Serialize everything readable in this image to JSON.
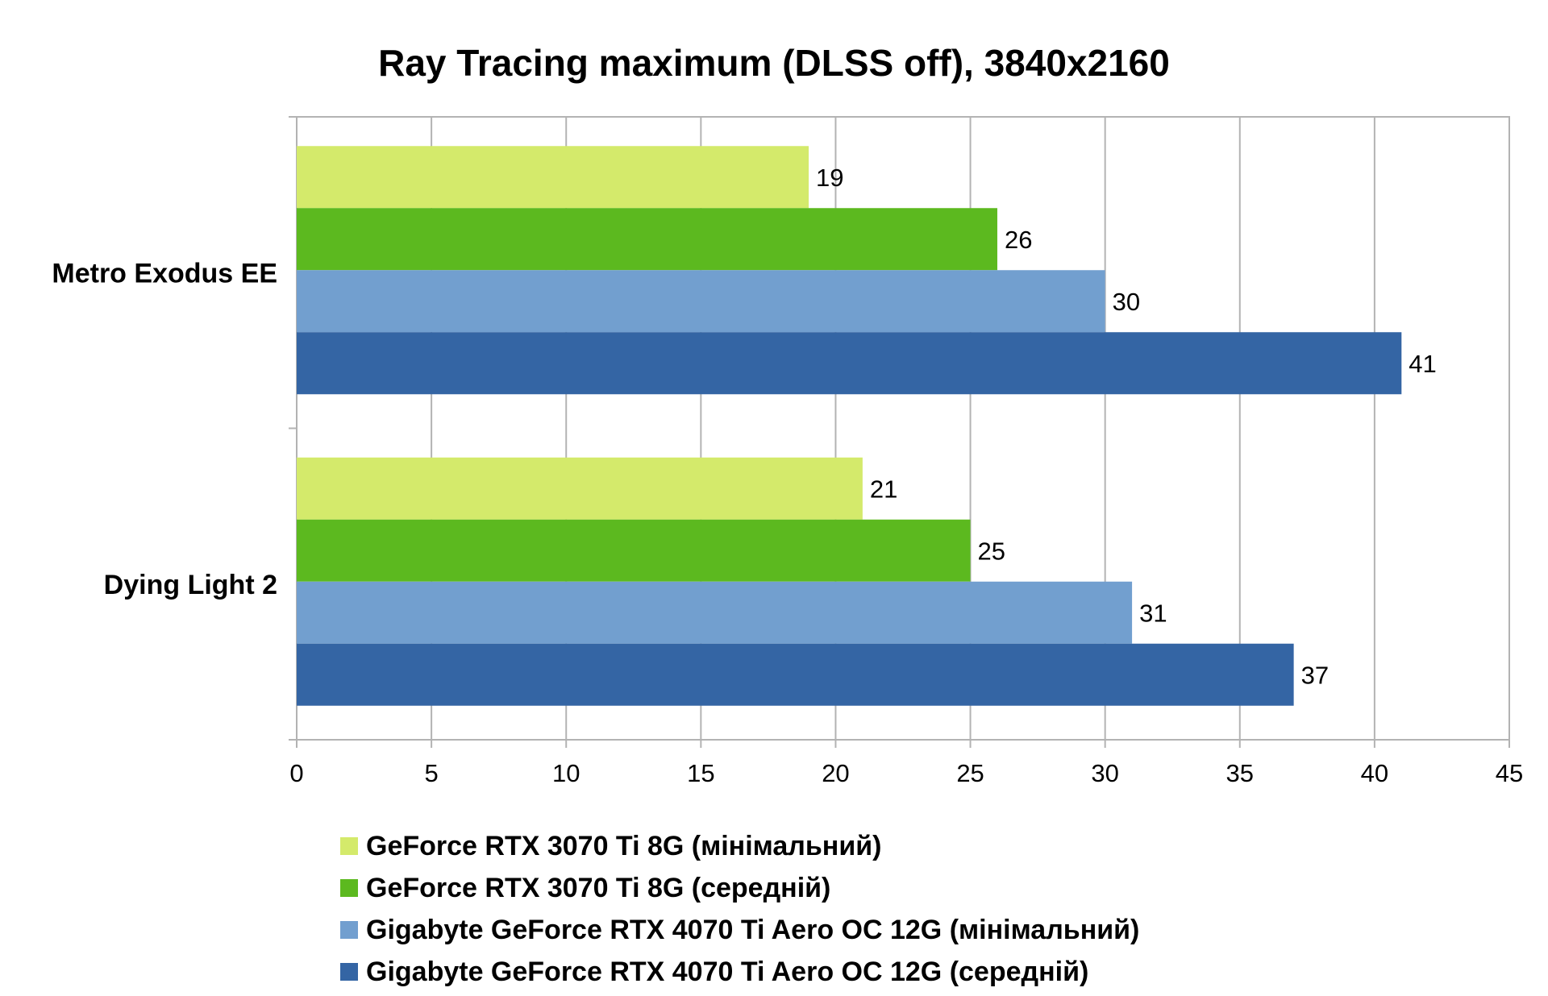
{
  "chart_data": {
    "type": "bar",
    "orientation": "horizontal",
    "title": "Ray Tracing maximum (DLSS off), 3840x2160",
    "categories": [
      "Metro Exodus EE",
      "Dying Light 2"
    ],
    "series": [
      {
        "name": "GeForce RTX 3070 Ti 8G (мінімальний)",
        "color": "#d4ea6b",
        "values": [
          19,
          21
        ]
      },
      {
        "name": "GeForce RTX 3070 Ti 8G (середній)",
        "color": "#5cb91f",
        "values": [
          26,
          25
        ]
      },
      {
        "name": "Gigabyte GeForce RTX 4070 Ti Aero OC 12G (мінімальний)",
        "color": "#729fcf",
        "values": [
          30,
          31
        ]
      },
      {
        "name": "Gigabyte GeForce RTX 4070 Ti Aero OC 12G (середній)",
        "color": "#3465a4",
        "values": [
          41,
          37
        ]
      }
    ],
    "xlim": [
      0,
      45
    ],
    "x_ticks": [
      "0",
      "5",
      "10",
      "15",
      "20",
      "25",
      "30",
      "35",
      "40",
      "45"
    ],
    "grid": true,
    "data_labels": true,
    "legend_position": "bottom"
  }
}
